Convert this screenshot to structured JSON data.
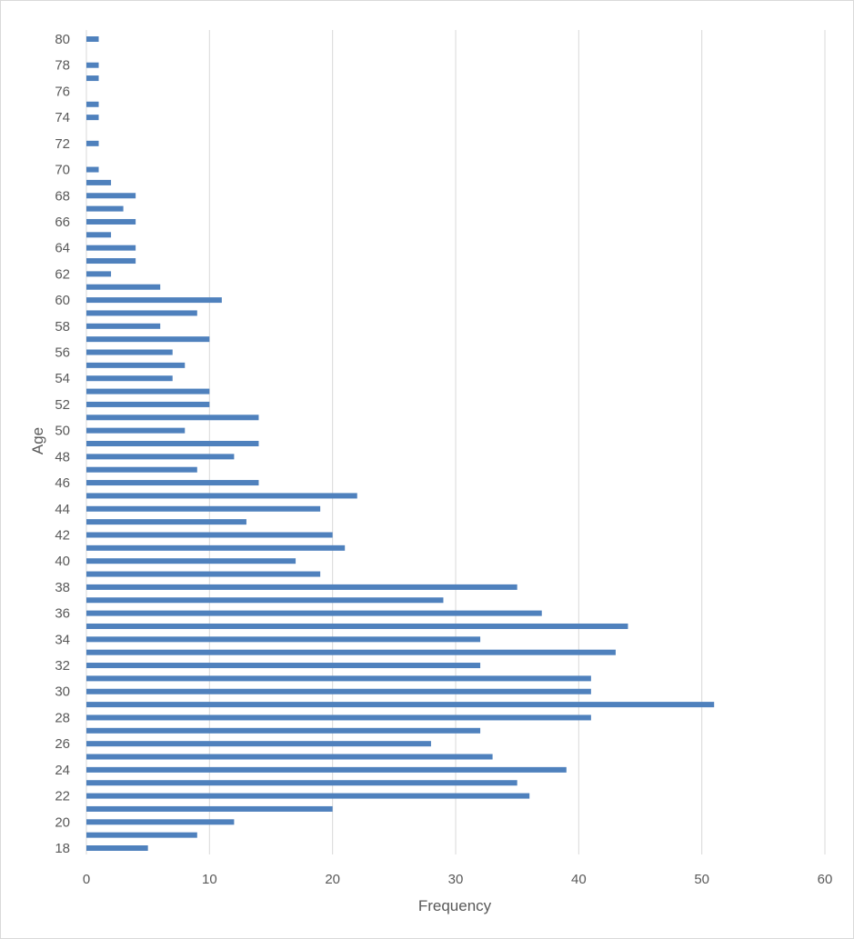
{
  "chart_data": {
    "type": "bar",
    "orientation": "horizontal",
    "title": "",
    "xlabel": "Frequency",
    "ylabel": "Age",
    "xlim": [
      0,
      60
    ],
    "xticks": [
      0,
      10,
      20,
      30,
      40,
      50,
      60
    ],
    "ylim": [
      18,
      80
    ],
    "yticks": [
      18,
      20,
      22,
      24,
      26,
      28,
      30,
      32,
      34,
      36,
      38,
      40,
      42,
      44,
      46,
      48,
      50,
      52,
      54,
      56,
      58,
      60,
      62,
      64,
      66,
      68,
      70,
      72,
      74,
      76,
      78,
      80
    ],
    "grid": "vertical",
    "legend": "none",
    "bar_color": "#4f81bd",
    "categories": [
      18,
      19,
      20,
      21,
      22,
      23,
      24,
      25,
      26,
      27,
      28,
      29,
      30,
      31,
      32,
      33,
      34,
      35,
      36,
      37,
      38,
      39,
      40,
      41,
      42,
      43,
      44,
      45,
      46,
      47,
      48,
      49,
      50,
      51,
      52,
      53,
      54,
      55,
      56,
      57,
      58,
      59,
      60,
      61,
      62,
      63,
      64,
      65,
      66,
      67,
      68,
      69,
      70,
      71,
      72,
      73,
      74,
      75,
      76,
      77,
      78,
      79,
      80
    ],
    "values": [
      5,
      9,
      12,
      20,
      36,
      35,
      39,
      33,
      28,
      32,
      41,
      51,
      41,
      41,
      32,
      43,
      32,
      44,
      37,
      29,
      35,
      19,
      17,
      21,
      20,
      13,
      19,
      22,
      14,
      9,
      12,
      14,
      8,
      14,
      10,
      10,
      7,
      8,
      7,
      10,
      6,
      9,
      11,
      6,
      2,
      4,
      4,
      2,
      4,
      3,
      4,
      2,
      1,
      0,
      1,
      0,
      1,
      1,
      0,
      1,
      1,
      0,
      1
    ]
  }
}
